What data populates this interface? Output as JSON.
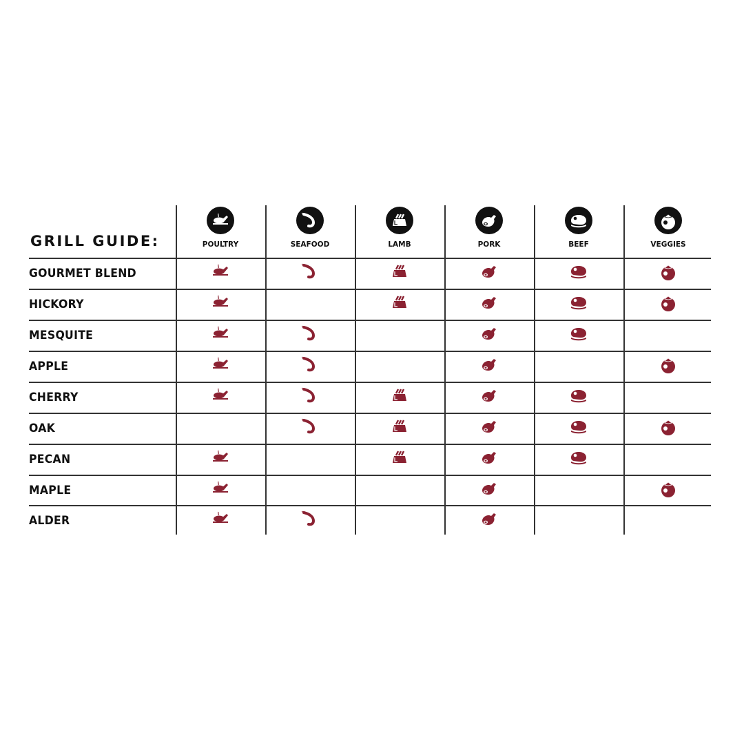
{
  "title": "GRILL GUIDE:",
  "accent_color": "#8b2232",
  "header_icon_color": "#111111",
  "columns": [
    {
      "label": "POULTRY",
      "icon": "roast-chicken-icon"
    },
    {
      "label": "SEAFOOD",
      "icon": "shrimp-icon"
    },
    {
      "label": "LAMB",
      "icon": "lamb-rack-icon"
    },
    {
      "label": "PORK",
      "icon": "ham-icon"
    },
    {
      "label": "BEEF",
      "icon": "steak-icon"
    },
    {
      "label": "VEGGIES",
      "icon": "tomato-icon"
    }
  ],
  "rows": [
    {
      "label": "GOURMET BLEND",
      "pairs": [
        true,
        true,
        true,
        true,
        true,
        true
      ]
    },
    {
      "label": "HICKORY",
      "pairs": [
        true,
        false,
        true,
        true,
        true,
        true
      ]
    },
    {
      "label": "MESQUITE",
      "pairs": [
        true,
        true,
        false,
        true,
        true,
        false
      ]
    },
    {
      "label": "APPLE",
      "pairs": [
        true,
        true,
        false,
        true,
        false,
        true
      ]
    },
    {
      "label": "CHERRY",
      "pairs": [
        true,
        true,
        true,
        true,
        true,
        false
      ]
    },
    {
      "label": "OAK",
      "pairs": [
        false,
        true,
        true,
        true,
        true,
        true
      ]
    },
    {
      "label": "PECAN",
      "pairs": [
        true,
        false,
        true,
        true,
        true,
        false
      ]
    },
    {
      "label": "MAPLE",
      "pairs": [
        true,
        false,
        false,
        true,
        false,
        true
      ]
    },
    {
      "label": "ALDER",
      "pairs": [
        true,
        true,
        false,
        true,
        false,
        false
      ]
    }
  ]
}
